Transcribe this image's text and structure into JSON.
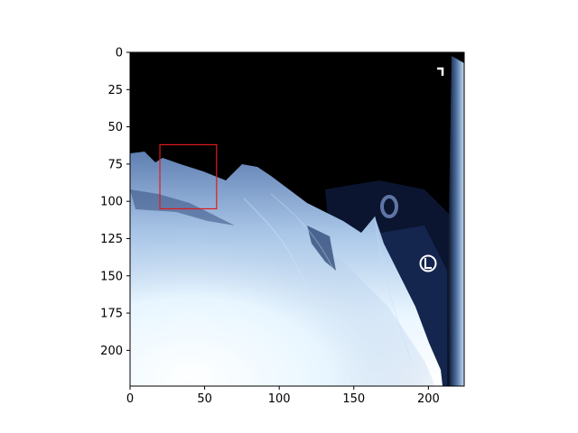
{
  "image": {
    "subject": "chest x-ray",
    "colormap": "bone",
    "x_range": [
      0,
      224
    ],
    "y_range": [
      0,
      224
    ],
    "y_axis_direction": "top-to-bottom",
    "markers": [
      "L"
    ]
  },
  "annotations": [
    {
      "type": "bounding-box",
      "color": "#e01b1b",
      "x_min": 20,
      "x_max": 58,
      "y_min": 62,
      "y_max": 105
    }
  ],
  "axes": {
    "x_ticks": [
      "0",
      "50",
      "100",
      "150",
      "200"
    ],
    "y_ticks": [
      "0",
      "25",
      "50",
      "75",
      "100",
      "125",
      "150",
      "175",
      "200"
    ]
  }
}
